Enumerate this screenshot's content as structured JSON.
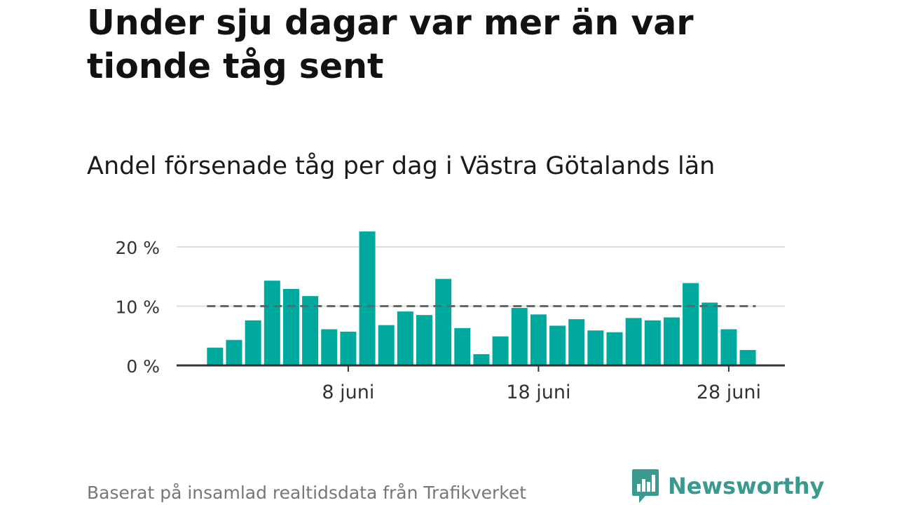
{
  "title": "Under sju dagar var mer än var tionde tåg sent",
  "subtitle": "Andel försenade tåg per dag i Västra Götalands län",
  "source": "Baserat på insamlad realtidsdata från Trafikverket",
  "brand": "Newsworthy",
  "colors": {
    "bar": "#00a99d",
    "reference_line": "#666666",
    "gridline": "#dddddd",
    "axis": "#333333",
    "brand": "#3a9a8f"
  },
  "icons": {
    "logo": "bar-chart-speech-bubble-icon"
  },
  "chart_data": {
    "type": "bar",
    "x_start_day": 0,
    "xticks": [
      {
        "day": 8,
        "label": "8 juni"
      },
      {
        "day": 18,
        "label": "18 juni"
      },
      {
        "day": 28,
        "label": "28 juni"
      }
    ],
    "yticks": [
      {
        "value": 0,
        "label": "0 %"
      },
      {
        "value": 10,
        "label": "10 %"
      },
      {
        "value": 20,
        "label": "20 %"
      }
    ],
    "ylim": [
      0,
      24
    ],
    "reference_value": 10,
    "grid": true,
    "series": [
      {
        "days": [
          1,
          2,
          3,
          4,
          5,
          6,
          7,
          8,
          9,
          10,
          11,
          12,
          13,
          14,
          15,
          16,
          17,
          18,
          19,
          20,
          21,
          22,
          23,
          24,
          25,
          26,
          27,
          28,
          29
        ],
        "values": [
          3.0,
          4.3,
          7.6,
          14.3,
          12.9,
          11.7,
          6.1,
          5.7,
          22.6,
          6.8,
          9.1,
          8.5,
          14.6,
          6.3,
          1.9,
          4.9,
          9.7,
          8.6,
          6.7,
          7.8,
          5.9,
          5.6,
          8.0,
          7.6,
          8.1,
          13.9,
          10.6,
          6.1,
          2.6
        ]
      }
    ],
    "xlabel": "",
    "ylabel": ""
  }
}
